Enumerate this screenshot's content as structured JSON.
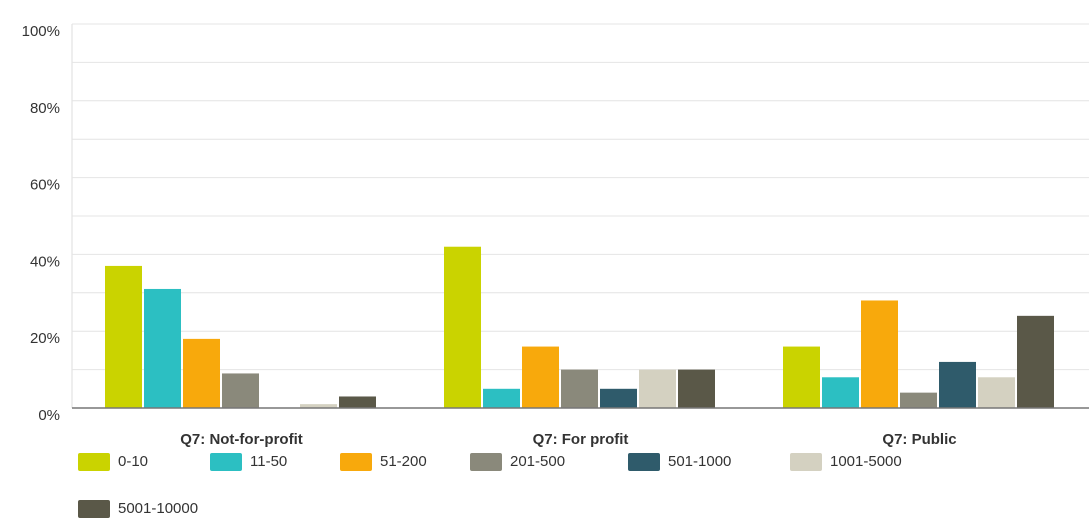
{
  "chart_data": {
    "type": "bar",
    "categories": [
      "Q7: Not-for-profit",
      "Q7: For profit",
      "Q7: Public"
    ],
    "series": [
      {
        "name": "0-10",
        "color": "#cad300",
        "values": [
          37,
          42,
          16
        ]
      },
      {
        "name": "11-50",
        "color": "#2cbfc2",
        "values": [
          31,
          5,
          8
        ]
      },
      {
        "name": "51-200",
        "color": "#f8a90c",
        "values": [
          18,
          16,
          28
        ]
      },
      {
        "name": "201-500",
        "color": "#8a897b",
        "values": [
          9,
          10,
          4
        ]
      },
      {
        "name": "501-1000",
        "color": "#2f5b6b",
        "values": [
          0,
          5,
          12
        ]
      },
      {
        "name": "1001-5000",
        "color": "#d4d1c1",
        "values": [
          1,
          10,
          8
        ]
      },
      {
        "name": "5001-10000",
        "color": "#5a5848",
        "values": [
          3,
          10,
          24
        ]
      }
    ],
    "ylim": [
      0,
      100
    ],
    "yticks": [
      {
        "value": 0,
        "label": "0%"
      },
      {
        "value": 20,
        "label": "20%"
      },
      {
        "value": 40,
        "label": "40%"
      },
      {
        "value": 60,
        "label": "60%"
      },
      {
        "value": 80,
        "label": "80%"
      },
      {
        "value": 100,
        "label": "100%"
      }
    ],
    "minor_yticks": [
      10,
      30,
      50,
      70,
      90
    ],
    "grid": true
  }
}
